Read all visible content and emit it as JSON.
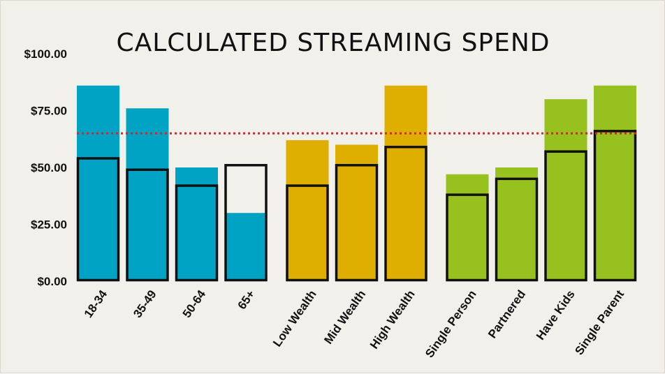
{
  "chart_data": {
    "type": "bar",
    "title": "CALCULATED STREAMING SPEND",
    "xlabel": "",
    "ylabel": "",
    "ylim": [
      0,
      100
    ],
    "yticks": [
      "$0.00",
      "$25.00",
      "$50.00",
      "$75.00",
      "$100.00"
    ],
    "ytick_values": [
      0,
      25,
      50,
      75,
      100
    ],
    "reference_line": {
      "value": 65,
      "style": "dotted",
      "color": "#cc2b2b"
    },
    "grid": false,
    "legend": "none",
    "groups": [
      {
        "color": "#00a3c4",
        "categories": [
          "18-34",
          "35-49",
          "50-64",
          "65+"
        ]
      },
      {
        "color": "#deae00",
        "categories": [
          "Low Wealth",
          "Mid Wealth",
          "High Wealth"
        ]
      },
      {
        "color": "#97c11f",
        "categories": [
          "Single Person",
          "Partnered",
          "Have Kids",
          "Single Parent"
        ]
      }
    ],
    "categories": [
      "18-34",
      "35-49",
      "50-64",
      "65+",
      "Low Wealth",
      "Mid Wealth",
      "High Wealth",
      "Single Person",
      "Partnered",
      "Have Kids",
      "Single Parent"
    ],
    "series": [
      {
        "values": [
          86,
          76,
          50,
          30,
          62,
          60,
          86,
          47,
          50,
          80,
          86
        ],
        "style": "filled bar"
      },
      {
        "values": [
          54,
          49,
          42,
          51,
          42,
          51,
          59,
          38,
          45,
          57,
          66
        ],
        "style": "black outlined bar"
      }
    ]
  }
}
